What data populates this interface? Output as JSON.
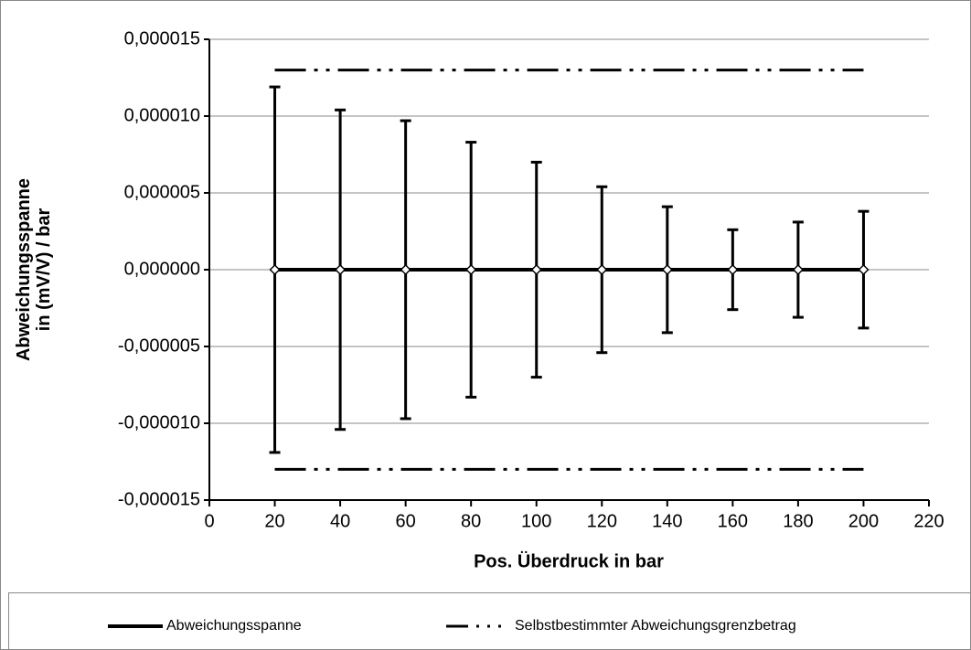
{
  "chart_data": {
    "type": "errorbar",
    "xlabel": "Pos. Überdruck in bar",
    "ylabel": "Abweichungsspanne in (mV/V) / bar",
    "x": [
      20,
      40,
      60,
      80,
      100,
      120,
      140,
      160,
      180,
      200
    ],
    "series": [
      {
        "name": "Abweichungsspanne",
        "color": "#000000",
        "values": [
          0,
          0,
          0,
          0,
          0,
          0,
          0,
          0,
          0,
          0
        ],
        "errors": [
          1.19e-05,
          1.04e-05,
          9.7e-06,
          8.3e-06,
          7e-06,
          5.4e-06,
          4.1e-06,
          2.6e-06,
          3.1e-06,
          3.8e-06
        ]
      }
    ],
    "limit": {
      "name": "Selbstbestimmter Abweichungsgrenzbetrag",
      "color": "#000000",
      "x": [
        20,
        200
      ],
      "upper": 1.3e-05,
      "lower": -1.3e-05
    },
    "xlim": [
      0,
      220
    ],
    "xticks": [
      0,
      20,
      40,
      60,
      80,
      100,
      120,
      140,
      160,
      180,
      200,
      220
    ],
    "ylim": [
      -1.5e-05,
      1.5e-05
    ],
    "yticks": [
      {
        "value": -1.5e-05,
        "label": "-0,000015"
      },
      {
        "value": -1e-05,
        "label": "-0,000010"
      },
      {
        "value": -5e-06,
        "label": "-0,000005"
      },
      {
        "value": 0,
        "label": "0,000000"
      },
      {
        "value": 5e-06,
        "label": "0,000005"
      },
      {
        "value": 1e-05,
        "label": "0,000010"
      },
      {
        "value": 1.5e-05,
        "label": "0,000015"
      }
    ],
    "grid": true,
    "legend": "bottom"
  }
}
